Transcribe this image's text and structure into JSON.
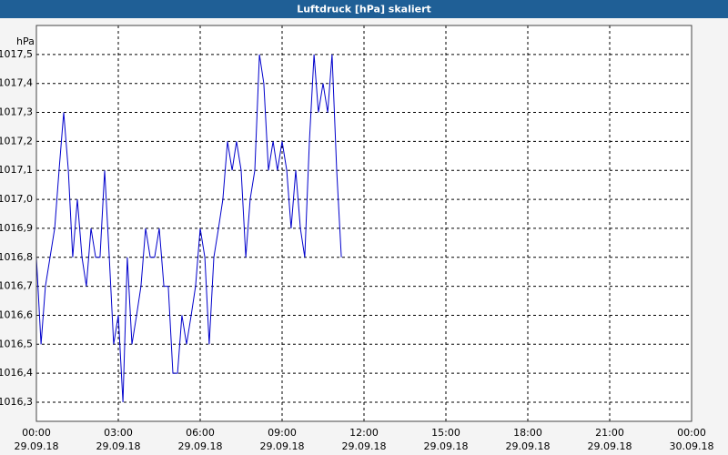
{
  "chart_data": {
    "type": "line",
    "title": "Luftdruck [hPa] skaliert",
    "y_label": "hPa",
    "x": [
      0,
      0.17,
      0.33,
      0.5,
      0.67,
      0.83,
      1,
      1.17,
      1.33,
      1.5,
      1.67,
      1.83,
      2,
      2.17,
      2.33,
      2.5,
      2.67,
      2.83,
      3,
      3.17,
      3.33,
      3.5,
      3.67,
      3.83,
      4,
      4.17,
      4.33,
      4.5,
      4.67,
      4.83,
      5,
      5.17,
      5.33,
      5.5,
      5.67,
      5.83,
      6,
      6.17,
      6.33,
      6.5,
      6.67,
      6.83,
      7,
      7.17,
      7.33,
      7.5,
      7.67,
      7.83,
      8,
      8.17,
      8.33,
      8.5,
      8.67,
      8.83,
      9,
      9.17,
      9.33,
      9.5,
      9.67,
      9.83,
      10,
      10.17,
      10.33,
      10.5,
      10.67,
      10.83,
      11,
      11.17
    ],
    "series": [
      {
        "name": "Luftdruck",
        "color": "#0000cc",
        "values": [
          1016.8,
          1016.5,
          1016.7,
          1016.8,
          1016.9,
          1017.1,
          1017.3,
          1017.1,
          1016.8,
          1017.0,
          1016.8,
          1016.7,
          1016.9,
          1016.8,
          1016.8,
          1017.1,
          1016.8,
          1016.5,
          1016.6,
          1016.3,
          1016.8,
          1016.5,
          1016.6,
          1016.7,
          1016.9,
          1016.8,
          1016.8,
          1016.9,
          1016.7,
          1016.7,
          1016.4,
          1016.4,
          1016.6,
          1016.5,
          1016.6,
          1016.7,
          1016.9,
          1016.8,
          1016.5,
          1016.8,
          1016.9,
          1017.0,
          1017.2,
          1017.1,
          1017.2,
          1017.1,
          1016.8,
          1017.0,
          1017.1,
          1017.5,
          1017.4,
          1017.1,
          1017.2,
          1017.1,
          1017.2,
          1017.1,
          1016.9,
          1017.1,
          1016.9,
          1016.8,
          1017.2,
          1017.5,
          1017.3,
          1017.4,
          1017.3,
          1017.5,
          1017.1,
          1016.8
        ]
      }
    ],
    "xlim": [
      0,
      24
    ],
    "xticks": [
      {
        "value": 0,
        "label": "00:00",
        "date": "29.09.18"
      },
      {
        "value": 3,
        "label": "03:00",
        "date": "29.09.18"
      },
      {
        "value": 6,
        "label": "06:00",
        "date": "29.09.18"
      },
      {
        "value": 9,
        "label": "09:00",
        "date": "29.09.18"
      },
      {
        "value": 12,
        "label": "12:00",
        "date": "29.09.18"
      },
      {
        "value": 15,
        "label": "15:00",
        "date": "29.09.18"
      },
      {
        "value": 18,
        "label": "18:00",
        "date": "29.09.18"
      },
      {
        "value": 21,
        "label": "21:00",
        "date": "29.09.18"
      },
      {
        "value": 24,
        "label": "00:00",
        "date": "30.09.18"
      }
    ],
    "ylim": [
      1016.234,
      1017.6
    ],
    "yticks": [
      {
        "value": 1016.3,
        "label": "1016,3"
      },
      {
        "value": 1016.4,
        "label": "1016,4"
      },
      {
        "value": 1016.5,
        "label": "1016,5"
      },
      {
        "value": 1016.6,
        "label": "1016,6"
      },
      {
        "value": 1016.7,
        "label": "1016,7"
      },
      {
        "value": 1016.8,
        "label": "1016,8"
      },
      {
        "value": 1016.9,
        "label": "1016,9"
      },
      {
        "value": 1017.0,
        "label": "1017,0"
      },
      {
        "value": 1017.1,
        "label": "1017,1"
      },
      {
        "value": 1017.2,
        "label": "1017,2"
      },
      {
        "value": 1017.3,
        "label": "1017,3"
      },
      {
        "value": 1017.4,
        "label": "1017,4"
      },
      {
        "value": 1017.5,
        "label": "1017,5"
      }
    ],
    "grid": true
  }
}
